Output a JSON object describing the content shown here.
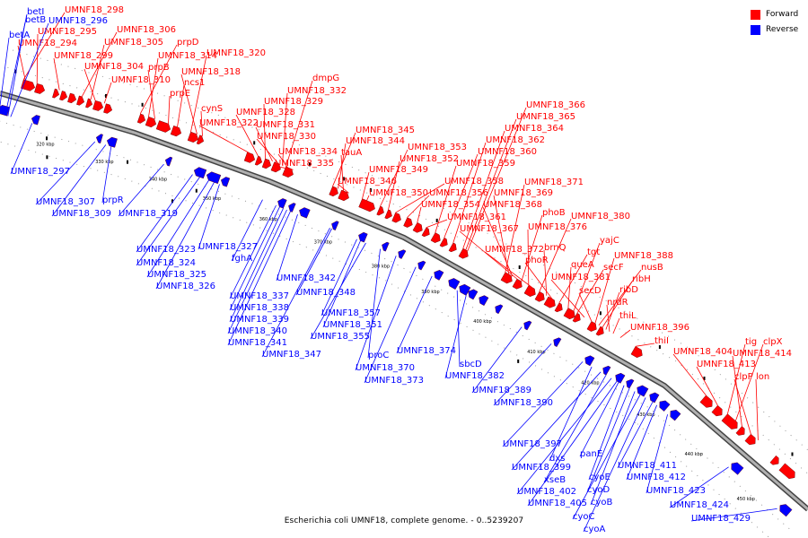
{
  "caption": "Escherichia coli UMNF18, complete genome. - 0..5239207",
  "legend": [
    {
      "label": "Forward",
      "color": "#ff0000"
    },
    {
      "label": "Reverse",
      "color": "#0000ff"
    }
  ],
  "colors": {
    "forward": "#ff0000",
    "reverse": "#0000ff",
    "backbone": "#808080"
  },
  "ticks": [
    "320 kbp",
    "330 kbp",
    "340 kbp",
    "350 kbp",
    "360 kbp",
    "370 kbp",
    "380 kbp",
    "390 kbp",
    "400 kbp",
    "410 kbp",
    "420 kbp",
    "430 kbp",
    "440 kbp",
    "450 kbp"
  ],
  "forward_genes": [
    "UMNF18_298",
    "UMNF18_295",
    "UMNF18_294",
    "UMNF18_299",
    "UMNF18_306",
    "UMNF18_305",
    "UMNF18_304",
    "UMNF18_310",
    "prpD",
    "UMNF18_314",
    "prpB",
    "prpE",
    "ncs1",
    "UMNF18_320",
    "UMNF18_318",
    "cynS",
    "UMNF18_322",
    "UMNF18_328",
    "UMNF18_329",
    "UMNF18_331",
    "UMNF18_330",
    "dmpG",
    "UMNF18_332",
    "UMNF18_334",
    "UMNF18_335",
    "UMNF18_345",
    "UMNF18_344",
    "tauA",
    "UMNF18_346",
    "UMNF18_349",
    "UMNF18_350",
    "UMNF18_353",
    "UMNF18_352",
    "UMNF18_358",
    "UMNF18_356",
    "UMNF18_354",
    "UMNF18_361",
    "UMNF18_359",
    "UMNF18_360",
    "UMNF18_362",
    "UMNF18_364",
    "UMNF18_365",
    "UMNF18_366",
    "UMNF18_371",
    "UMNF18_369",
    "UMNF18_368",
    "UMNF18_367",
    "phoB",
    "UMNF18_376",
    "UMNF18_380",
    "UMNF18_372",
    "brnQ",
    "phoR",
    "tgt",
    "queA",
    "yajC",
    "secF",
    "UMNF18_381",
    "secD",
    "UMNF18_388",
    "nusB",
    "ribH",
    "ribD",
    "nrdR",
    "thiL",
    "UMNF18_396",
    "thiI",
    "UMNF18_404",
    "UMNF18_413",
    "tig",
    "clpX",
    "UMNF18_414",
    "clpP",
    "lon"
  ],
  "reverse_genes": [
    "betI",
    "betB",
    "betA",
    "UMNF18_296",
    "UMNF18_297",
    "UMNF18_307",
    "UMNF18_309",
    "prpR",
    "UMNF18_319",
    "UMNF18_323",
    "UMNF18_324",
    "UMNF18_325",
    "UMNF18_326",
    "UMNF18_327",
    "fghA",
    "UMNF18_337",
    "UMNF18_338",
    "UMNF18_339",
    "UMNF18_340",
    "UMNF18_341",
    "UMNF18_342",
    "UMNF18_347",
    "UMNF18_348",
    "UMNF18_357",
    "UMNF18_351",
    "UMNF18_355",
    "proC",
    "UMNF18_370",
    "UMNF18_373",
    "UMNF18_374",
    "sbcD",
    "UMNF18_382",
    "UMNF18_389",
    "UMNF18_390",
    "UMNF18_397",
    "dxs",
    "UMNF18_399",
    "xseB",
    "UMNF18_402",
    "UMNF18_405",
    "panE",
    "cyoE",
    "cyoD",
    "cyoB",
    "cyoC",
    "cyoA",
    "UMNF18_411",
    "UMNF18_412",
    "UMNF18_423",
    "UMNF18_424",
    "UMNF18_429"
  ]
}
